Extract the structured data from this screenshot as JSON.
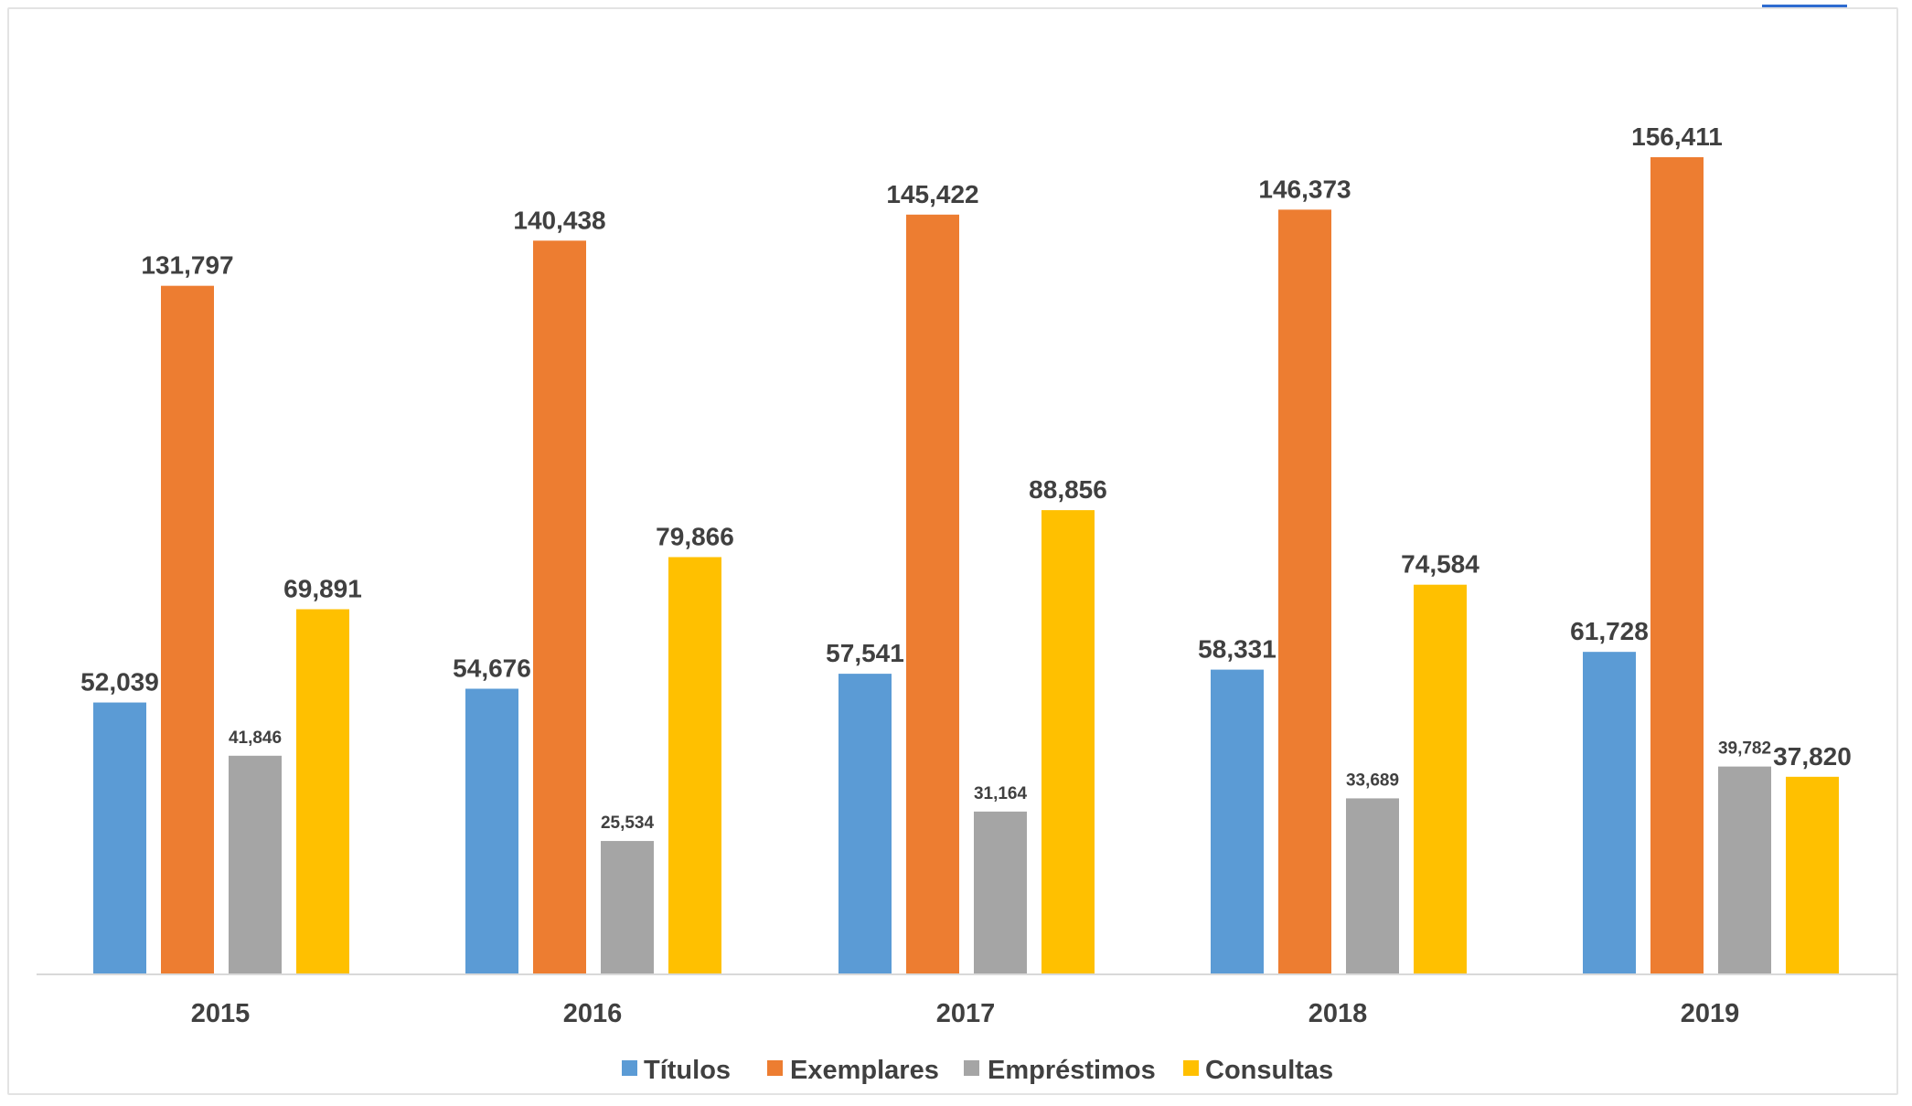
{
  "chart_data": {
    "type": "bar",
    "categories": [
      "2015",
      "2016",
      "2017",
      "2018",
      "2019"
    ],
    "series": [
      {
        "name": "Títulos",
        "color": "#5b9bd5",
        "values": [
          52039,
          54676,
          57541,
          58331,
          61728
        ],
        "labels": [
          "52,039",
          "54,676",
          "57,541",
          "58,331",
          "61,728"
        ]
      },
      {
        "name": "Exemplares",
        "color": "#ed7d31",
        "values": [
          131797,
          140438,
          145422,
          146373,
          156411
        ],
        "labels": [
          "131,797",
          "140,438",
          "145,422",
          "146,373",
          "156,411"
        ]
      },
      {
        "name": "Empréstimos",
        "color": "#a5a5a5",
        "values": [
          41846,
          25534,
          31164,
          33689,
          39782
        ],
        "labels": [
          "41,846",
          "25,534",
          "31,164",
          "33,689",
          "39,782"
        ]
      },
      {
        "name": "Consultas",
        "color": "#ffc000",
        "values": [
          69891,
          79866,
          88856,
          74584,
          37820
        ],
        "labels": [
          "69,891",
          "79,866",
          "88,856",
          "74,584",
          "37,820"
        ]
      }
    ],
    "ylim": [
      0,
      180000
    ],
    "grid": false,
    "legend_position": "bottom"
  }
}
